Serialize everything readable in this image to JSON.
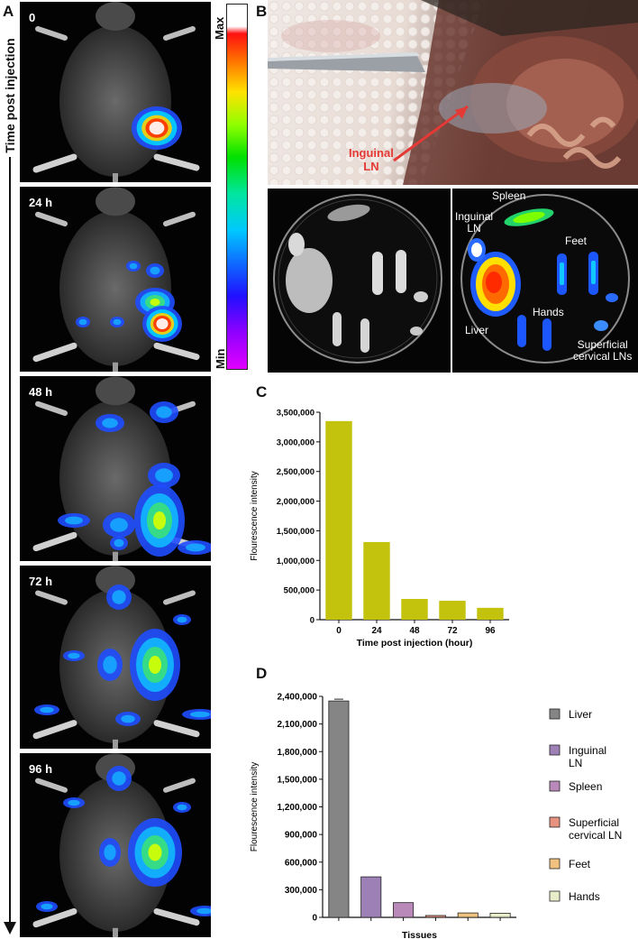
{
  "panel_a": {
    "letter": "A",
    "axis_label": "Time post injection",
    "timepoints": [
      "0",
      "24 h",
      "48 h",
      "72 h",
      "96 h"
    ],
    "colorbar": {
      "max_label": "Max",
      "min_label": "Min"
    }
  },
  "panel_b": {
    "letter": "B",
    "arrow_label_line1": "Inguinal",
    "arrow_label_line2": "LN",
    "arrow_color": "#e53935",
    "organ_labels": {
      "spleen": "Spleen",
      "inguinal_1": "Inguinal",
      "inguinal_2": "LN",
      "feet": "Feet",
      "hands": "Hands",
      "liver": "Liver",
      "superficial_1": "Superficial",
      "superficial_2": "cervical LNs"
    }
  },
  "panel_c": {
    "letter": "C",
    "chart_data": {
      "type": "bar",
      "categories": [
        "0",
        "24",
        "48",
        "72",
        "96"
      ],
      "values": [
        3350000,
        1310000,
        350000,
        320000,
        200000
      ],
      "xlabel": "Time post injection (hour)",
      "ylabel": "Flourescence intensity",
      "ylim": [
        0,
        3500000
      ],
      "yticks": [
        "0",
        "500,000",
        "1,000,000",
        "1,500,000",
        "2,000,000",
        "2,500,000",
        "3,000,000",
        "3,500,000"
      ],
      "bar_color": "#c3c20c"
    }
  },
  "panel_d": {
    "letter": "D",
    "chart_data": {
      "type": "bar",
      "categories": [
        "Liver",
        "Inguinal LN",
        "Spleen",
        "Superficial cervical LN",
        "Feet",
        "Hands"
      ],
      "values": [
        2350000,
        440000,
        160000,
        20000,
        48000,
        45000
      ],
      "colors": [
        "#858585",
        "#9d80b6",
        "#b98ab9",
        "#e79281",
        "#f0c17f",
        "#e9ecc9"
      ],
      "xlabel": "Tissues",
      "ylabel": "Flourescence intensity",
      "ylim": [
        0,
        2400000
      ],
      "yticks": [
        "0",
        "300,000",
        "600,000",
        "900,000",
        "1,200,000",
        "1,500,000",
        "1,800,000",
        "2,100,000",
        "2,400,000"
      ],
      "legend": [
        {
          "line1": "Liver",
          "line2": ""
        },
        {
          "line1": "Inguinal",
          "line2": "LN"
        },
        {
          "line1": "Spleen",
          "line2": ""
        },
        {
          "line1": "Superficial",
          "line2": "cervical LN"
        },
        {
          "line1": "Feet",
          "line2": ""
        },
        {
          "line1": "Hands",
          "line2": ""
        }
      ],
      "legend_placement": "right"
    }
  }
}
